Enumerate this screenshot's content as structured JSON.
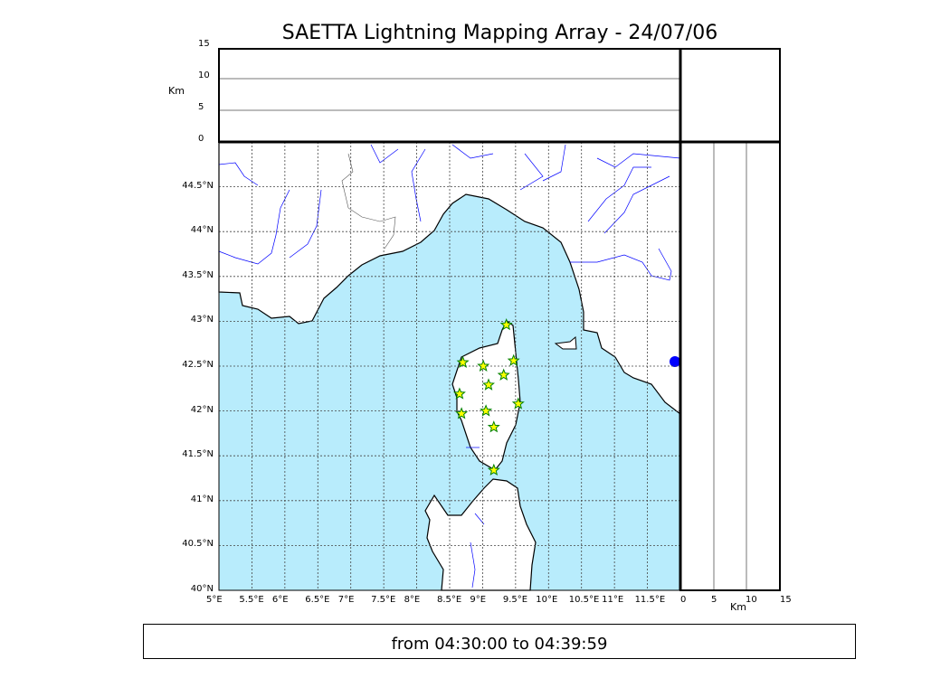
{
  "chart_data": {
    "type": "scatter",
    "title": "SAETTA Lightning Mapping Array - 24/07/06",
    "subtitle": "from 04:30:00 to 04:39:59",
    "xlim": [
      5,
      12
    ],
    "ylim": [
      40,
      45
    ],
    "x_ticks": [
      "5°E",
      "5.5°E",
      "6°E",
      "6.5°E",
      "7°E",
      "7.5°E",
      "8°E",
      "8.5°E",
      "9°E",
      "9.5°E",
      "10°E",
      "10.5°E",
      "11°E",
      "11.5°E"
    ],
    "y_ticks": [
      "40°N",
      "40.5°N",
      "41°N",
      "41.5°N",
      "42°N",
      "42.5°N",
      "43°N",
      "43.5°N",
      "44°N",
      "44.5°N"
    ],
    "altitude_panel": {
      "ylabel": "Km",
      "ticks": [
        "0",
        "5",
        "10",
        "15"
      ],
      "ylim": [
        0,
        15
      ]
    },
    "side_panel": {
      "xlabel": "Km",
      "ticks": [
        "0",
        "5",
        "10",
        "15"
      ],
      "xlim": [
        0,
        15
      ]
    },
    "grid": true,
    "marker": "star",
    "colors": {
      "sea": "#b8ecfc",
      "land": "#ffffff",
      "rivers": "#0000ff",
      "marker_fill": "#ffff00",
      "marker_edge": "#008000"
    },
    "points": [
      {
        "lon": 9.36,
        "lat": 42.96
      },
      {
        "lon": 8.7,
        "lat": 42.54
      },
      {
        "lon": 9.01,
        "lat": 42.5
      },
      {
        "lon": 9.47,
        "lat": 42.56
      },
      {
        "lon": 9.32,
        "lat": 42.4
      },
      {
        "lon": 9.09,
        "lat": 42.29
      },
      {
        "lon": 8.65,
        "lat": 42.19
      },
      {
        "lon": 9.54,
        "lat": 42.08
      },
      {
        "lon": 9.05,
        "lat": 42.0
      },
      {
        "lon": 8.68,
        "lat": 41.97
      },
      {
        "lon": 9.17,
        "lat": 41.82
      },
      {
        "lon": 9.17,
        "lat": 41.34
      }
    ]
  }
}
